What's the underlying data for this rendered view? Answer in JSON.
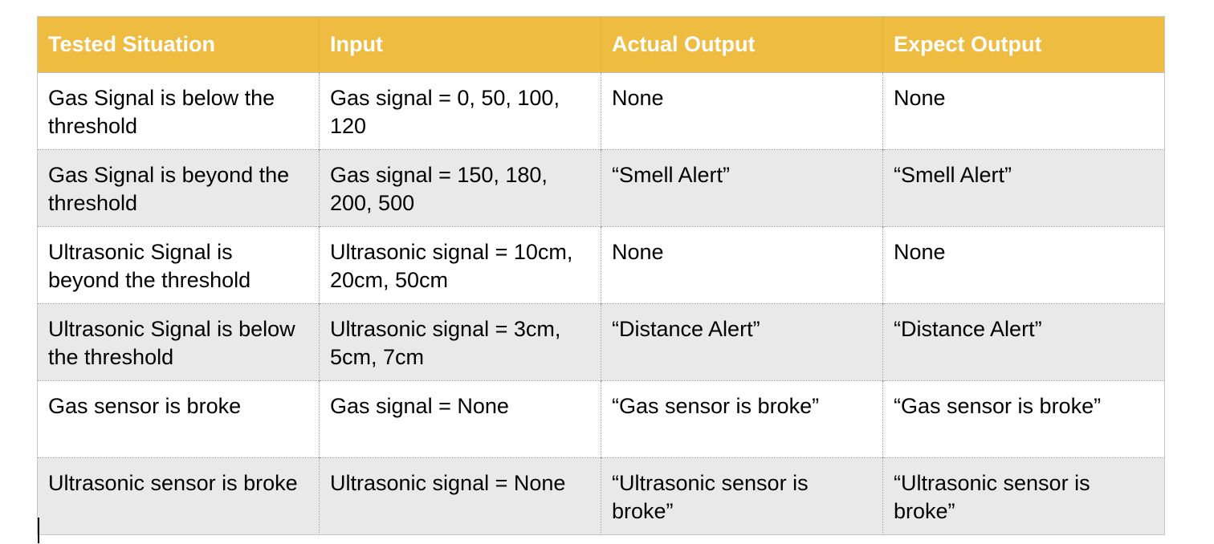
{
  "table": {
    "headers": [
      "Tested Situation",
      "Input",
      "Actual Output",
      "Expect Output"
    ],
    "rows": [
      [
        "Gas Signal is below the threshold",
        "Gas signal = 0, 50, 100, 120",
        "None",
        "None"
      ],
      [
        "Gas Signal is beyond the threshold",
        "Gas signal = 150, 180, 200, 500",
        "“Smell Alert”",
        "“Smell Alert”"
      ],
      [
        "Ultrasonic Signal is beyond the threshold",
        "Ultrasonic signal = 10cm, 20cm, 50cm",
        "None",
        "None"
      ],
      [
        "Ultrasonic Signal is below the threshold",
        "Ultrasonic signal = 3cm, 5cm, 7cm",
        "“Distance Alert”",
        "“Distance Alert”"
      ],
      [
        "Gas sensor is broke",
        "Gas signal = None",
        "“Gas sensor is broke”",
        "“Gas sensor is broke”"
      ],
      [
        "Ultrasonic sensor is broke",
        "Ultrasonic signal = None",
        "“Ultrasonic sensor is broke”",
        "“Ultrasonic sensor is broke”"
      ]
    ]
  },
  "colors": {
    "header_bg": "#efbc42",
    "header_text": "#ffffff",
    "stripe_bg": "#e9e9e9"
  }
}
